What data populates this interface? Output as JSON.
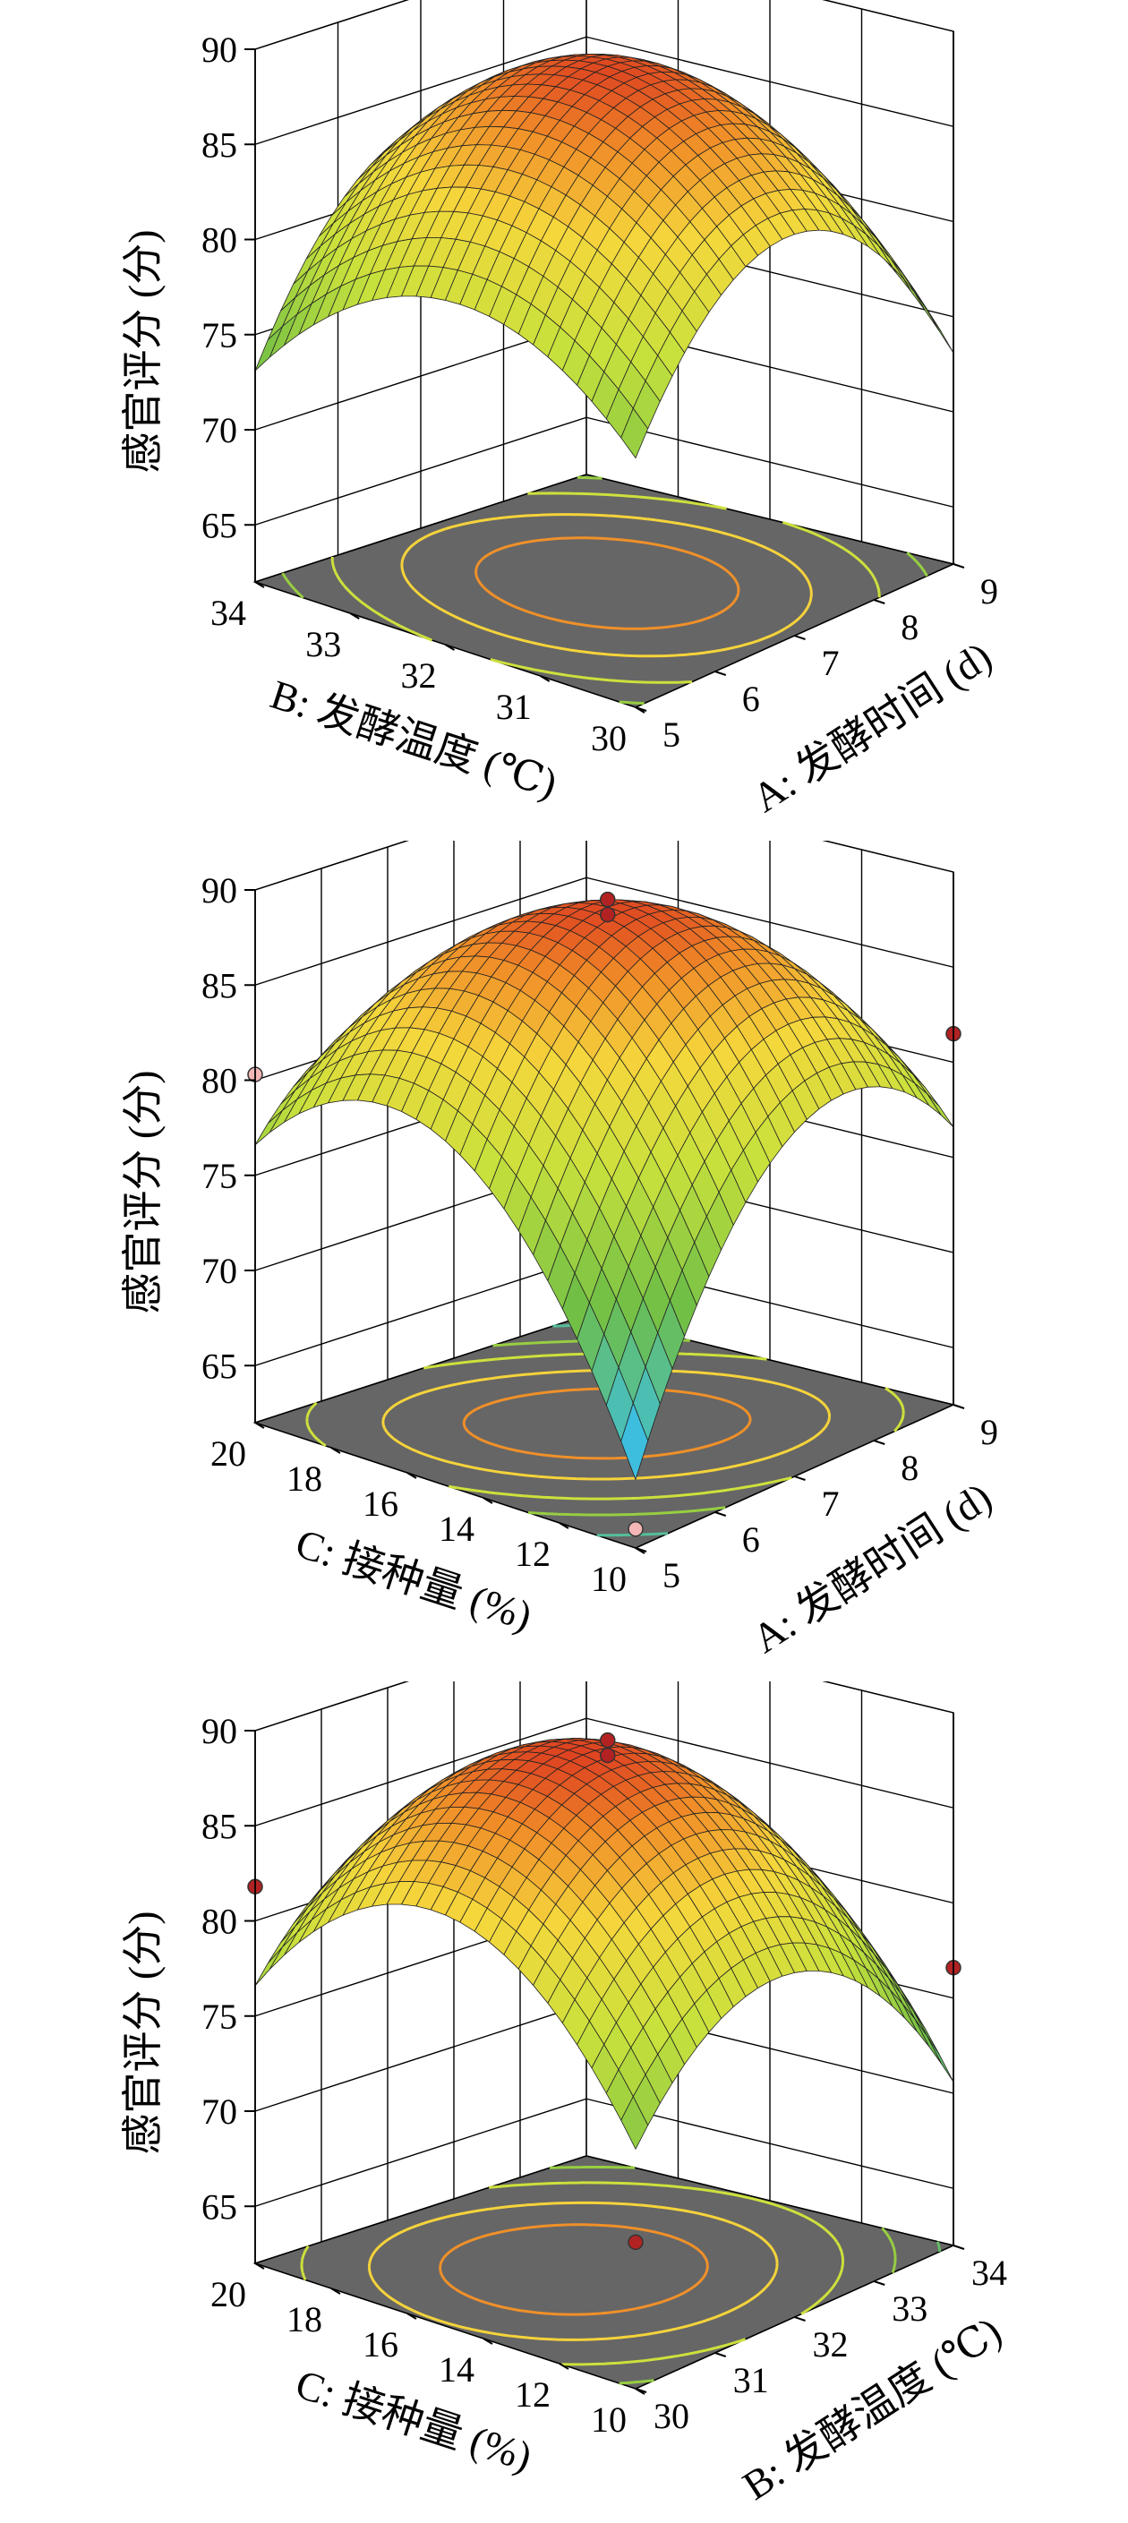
{
  "chart_data": [
    {
      "type": "surface3d",
      "z_label": "感官评分 (分)",
      "z_ticks": [
        "90",
        "85",
        "80",
        "75",
        "70",
        "65"
      ],
      "zlim": [
        62,
        90
      ],
      "x_axis": {
        "label": "A: 发酵时间 (d)",
        "ticks": [
          "5",
          "6",
          "7",
          "8",
          "9"
        ],
        "range": [
          5,
          9
        ]
      },
      "y_axis": {
        "label": "B: 发酵温度 (℃)",
        "ticks": [
          "30",
          "31",
          "32",
          "33",
          "34"
        ],
        "range": [
          30,
          34
        ]
      },
      "model": {
        "c": 89.1,
        "qa": 9.0,
        "qb": 6.0,
        "ab": 1.0,
        "la": 0.0,
        "lb": 0.0
      },
      "design_points": [],
      "contour_levels": [
        72,
        76,
        80,
        84,
        87
      ]
    },
    {
      "type": "surface3d",
      "z_label": "感官评分 (分)",
      "z_ticks": [
        "90",
        "85",
        "80",
        "75",
        "70",
        "65"
      ],
      "zlim": [
        62,
        90
      ],
      "x_axis": {
        "label": "A: 发酵时间 (d)",
        "ticks": [
          "5",
          "6",
          "7",
          "8",
          "9"
        ],
        "range": [
          5,
          9
        ]
      },
      "y_axis": {
        "label": "C: 接种量 (%)",
        "ticks": [
          "10",
          "12",
          "14",
          "16",
          "18",
          "20"
        ],
        "range": [
          10,
          20
        ]
      },
      "model": {
        "c": 89.1,
        "qa": 9.0,
        "qb": 9.0,
        "ab": -5.5,
        "la": 0.0,
        "lb": 0.0
      },
      "design_points": [
        {
          "a": 7,
          "b": 15,
          "z": 89.5,
          "color": "#b22222"
        },
        {
          "a": 7,
          "b": 15,
          "z": 88.7,
          "color": "#b22222"
        },
        {
          "a": 5,
          "b": 20,
          "z": 80.3,
          "color": "#f4b6b6"
        },
        {
          "a": 9,
          "b": 10,
          "z": 81.5,
          "color": "#b22222"
        },
        {
          "a": 5,
          "b": 10,
          "z": 63.0,
          "color": "#f4b6b6"
        }
      ],
      "contour_levels": [
        70,
        76,
        80,
        84,
        87
      ]
    },
    {
      "type": "surface3d",
      "z_label": "感官评分 (分)",
      "z_ticks": [
        "90",
        "85",
        "80",
        "75",
        "70",
        "65"
      ],
      "zlim": [
        62,
        90
      ],
      "x_axis": {
        "label": "B: 发酵温度 (℃)",
        "ticks": [
          "30",
          "31",
          "32",
          "33",
          "34"
        ],
        "range": [
          30,
          34
        ]
      },
      "y_axis": {
        "label": "C: 接种量 (%)",
        "ticks": [
          "10",
          "12",
          "14",
          "16",
          "18",
          "20"
        ],
        "range": [
          10,
          20
        ]
      },
      "model": {
        "c": 89.1,
        "qa": 7.5,
        "qb": 8.0,
        "ab": 0.0,
        "la": -2.0,
        "lb": 1.0
      },
      "design_points": [
        {
          "a": 32,
          "b": 15,
          "z": 89.5,
          "color": "#b22222"
        },
        {
          "a": 32,
          "b": 15,
          "z": 88.7,
          "color": "#b22222"
        },
        {
          "a": 30,
          "b": 20,
          "z": 81.8,
          "color": "#b22222"
        },
        {
          "a": 34,
          "b": 10,
          "z": 76.6,
          "color": "#b22222"
        },
        {
          "a": 30,
          "b": 10,
          "z": 69.7,
          "color": "#b22222"
        }
      ],
      "contour_levels": [
        72,
        76,
        80,
        84,
        87
      ]
    }
  ]
}
